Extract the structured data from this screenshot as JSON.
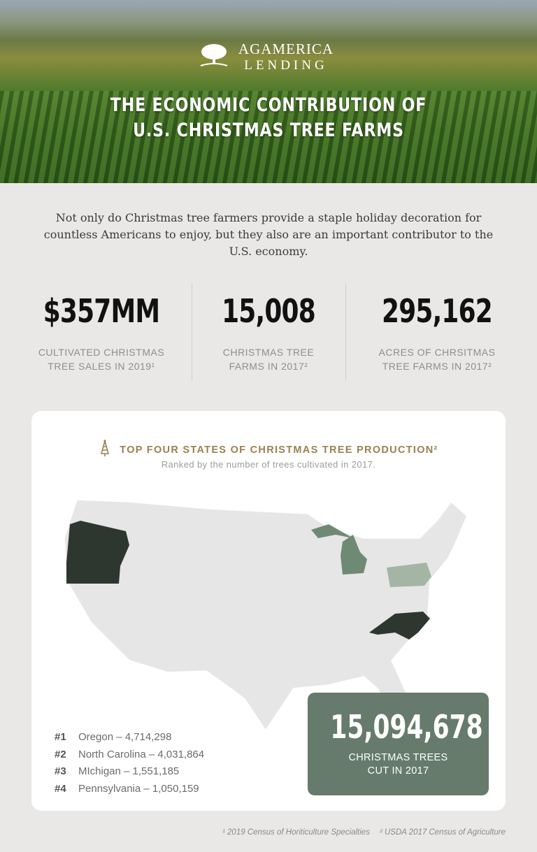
{
  "header": {
    "logo_line1": "AGAMERICA",
    "logo_line2": "LENDING",
    "title_line1": "THE ECONOMIC CONTRIBUTION OF",
    "title_line2": "U.S. CHRISTMAS TREE FARMS"
  },
  "intro": "Not only do Christmas tree farmers provide a staple holiday decoration for countless Americans to enjoy, but they also are an important contributor to the U.S. economy.",
  "stats": [
    {
      "value": "$357MM",
      "label1": "CULTIVATED CHRISTMAS",
      "label2": "TREE SALES IN 2019¹"
    },
    {
      "value": "15,008",
      "label1": "CHRISTMAS TREE",
      "label2": "FARMS IN 2017²"
    },
    {
      "value": "295,162",
      "label1": "ACRES OF CHRSITMAS",
      "label2": "TREE FARMS IN 2017²"
    }
  ],
  "card": {
    "title": "TOP FOUR STATES OF CHRISTMAS TREE PRODUCTION²",
    "subtitle": "Ranked by the number of trees cultivated in 2017.",
    "ranking": [
      {
        "rank": "#1",
        "text": "Oregon – 4,714,298"
      },
      {
        "rank": "#2",
        "text": "North Carolina – 4,031,864"
      },
      {
        "rank": "#3",
        "text": "MIchigan – 1,551,185"
      },
      {
        "rank": "#4",
        "text": "Pennsylvania – 1,050,159"
      }
    ],
    "total_value": "15,094,678",
    "total_label1": "CHRISTMAS TREES",
    "total_label2": "CUT IN 2017",
    "colors": {
      "rank1": "#2e3630",
      "rank2": "#2e3630",
      "rank3": "#6f8a74",
      "rank4": "#a4b5a6",
      "base": "#e6e6e6",
      "total_box": "#667b6b",
      "title": "#9a8052"
    }
  },
  "footnotes": [
    "¹ 2019 Census of Horiticulture Specialties",
    "² USDA 2017 Census of Agriculture"
  ]
}
